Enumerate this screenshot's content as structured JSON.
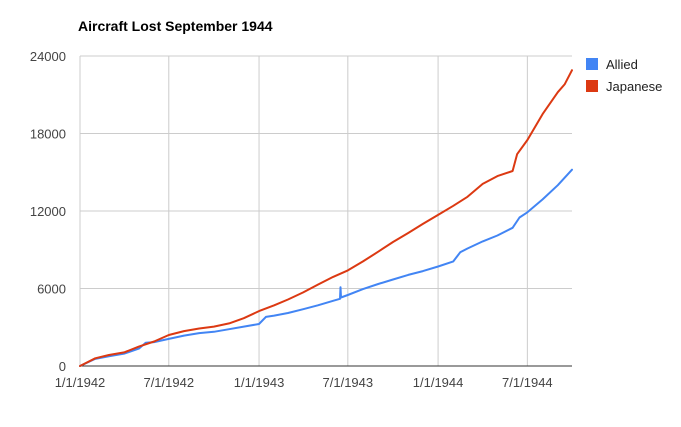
{
  "chart_data": {
    "type": "line",
    "title": "Aircraft Lost September 1944",
    "xlabel": "",
    "ylabel": "",
    "x_ticks": [
      "1/1/1942",
      "7/1/1942",
      "1/1/1943",
      "7/1/1943",
      "1/1/1944",
      "7/1/1944"
    ],
    "y_ticks": [
      "0",
      "6000",
      "12000",
      "18000",
      "24000"
    ],
    "xlim": [
      "1942-01-01",
      "1944-09-30"
    ],
    "ylim": [
      0,
      24000
    ],
    "grid": true,
    "legend_position": "right",
    "series": [
      {
        "name": "Allied",
        "color": "#4285f4",
        "points": [
          [
            "1942-01-01",
            0
          ],
          [
            "1942-02-01",
            550
          ],
          [
            "1942-03-01",
            750
          ],
          [
            "1942-04-01",
            950
          ],
          [
            "1942-05-01",
            1350
          ],
          [
            "1942-05-15",
            1800
          ],
          [
            "1942-06-01",
            1850
          ],
          [
            "1942-07-01",
            2100
          ],
          [
            "1942-08-01",
            2350
          ],
          [
            "1942-09-01",
            2550
          ],
          [
            "1942-10-01",
            2650
          ],
          [
            "1942-11-01",
            2850
          ],
          [
            "1942-12-01",
            3050
          ],
          [
            "1943-01-01",
            3250
          ],
          [
            "1943-01-15",
            3800
          ],
          [
            "1943-02-01",
            3900
          ],
          [
            "1943-03-01",
            4100
          ],
          [
            "1943-04-01",
            4400
          ],
          [
            "1943-05-01",
            4700
          ],
          [
            "1943-06-01",
            5050
          ],
          [
            "1943-06-15",
            5200
          ],
          [
            "1943-06-16",
            6100
          ],
          [
            "1943-06-17",
            5300
          ],
          [
            "1943-07-01",
            5500
          ],
          [
            "1943-08-01",
            5950
          ],
          [
            "1943-09-01",
            6350
          ],
          [
            "1943-10-01",
            6700
          ],
          [
            "1943-11-01",
            7050
          ],
          [
            "1943-12-01",
            7350
          ],
          [
            "1944-01-01",
            7700
          ],
          [
            "1944-02-01",
            8100
          ],
          [
            "1944-02-15",
            8800
          ],
          [
            "1944-03-01",
            9100
          ],
          [
            "1944-04-01",
            9650
          ],
          [
            "1944-05-01",
            10100
          ],
          [
            "1944-06-01",
            10700
          ],
          [
            "1944-06-15",
            11500
          ],
          [
            "1944-07-01",
            11900
          ],
          [
            "1944-08-01",
            12900
          ],
          [
            "1944-09-01",
            14000
          ],
          [
            "1944-09-30",
            15200
          ]
        ]
      },
      {
        "name": "Japanese",
        "color": "#dc3912",
        "points": [
          [
            "1942-01-01",
            0
          ],
          [
            "1942-02-01",
            600
          ],
          [
            "1942-03-01",
            850
          ],
          [
            "1942-04-01",
            1050
          ],
          [
            "1942-05-01",
            1500
          ],
          [
            "1942-06-01",
            1900
          ],
          [
            "1942-07-01",
            2400
          ],
          [
            "1942-08-01",
            2700
          ],
          [
            "1942-09-01",
            2900
          ],
          [
            "1942-10-01",
            3050
          ],
          [
            "1942-11-01",
            3300
          ],
          [
            "1942-12-01",
            3700
          ],
          [
            "1943-01-01",
            4250
          ],
          [
            "1943-02-01",
            4700
          ],
          [
            "1943-03-01",
            5150
          ],
          [
            "1943-04-01",
            5700
          ],
          [
            "1943-05-01",
            6300
          ],
          [
            "1943-06-01",
            6900
          ],
          [
            "1943-07-01",
            7400
          ],
          [
            "1943-08-01",
            8100
          ],
          [
            "1943-09-01",
            8850
          ],
          [
            "1943-10-01",
            9600
          ],
          [
            "1943-11-01",
            10300
          ],
          [
            "1943-12-01",
            11000
          ],
          [
            "1944-01-01",
            11700
          ],
          [
            "1944-02-01",
            12400
          ],
          [
            "1944-03-01",
            13100
          ],
          [
            "1944-04-01",
            14100
          ],
          [
            "1944-05-01",
            14700
          ],
          [
            "1944-06-01",
            15100
          ],
          [
            "1944-06-10",
            16400
          ],
          [
            "1944-07-01",
            17500
          ],
          [
            "1944-08-01",
            19500
          ],
          [
            "1944-09-01",
            21200
          ],
          [
            "1944-09-15",
            21800
          ],
          [
            "1944-09-30",
            22900
          ]
        ]
      }
    ]
  }
}
